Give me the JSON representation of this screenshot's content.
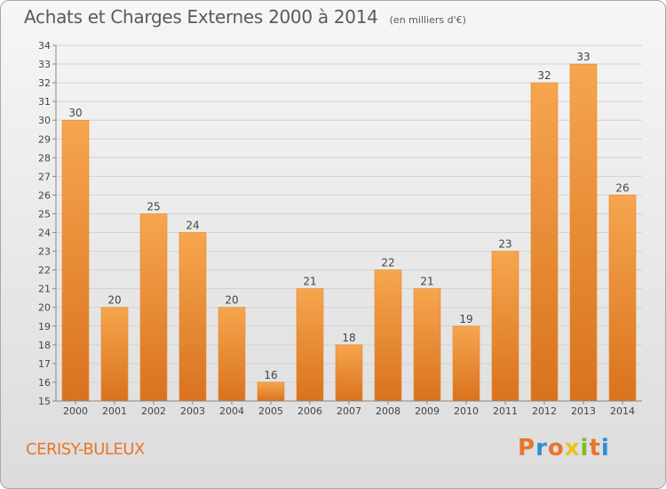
{
  "header": {
    "title": "Achats et Charges Externes 2000 à 2014",
    "subtitle": "(en milliers d'€)"
  },
  "footer": {
    "commune": "CERISY-BULEUX",
    "logo_text": "Proxiti",
    "logo_colors": [
      "#e8762a",
      "#2b8fd6",
      "#e8762a",
      "#e8c51a",
      "#7bbd2a",
      "#e8762a",
      "#2b8fd6"
    ]
  },
  "colors": {
    "bar_light": "#f6a64e",
    "bar_dark": "#d9721e",
    "bar_edge": "#e8862e"
  },
  "chart_data": {
    "type": "bar",
    "title": "Achats et Charges Externes 2000 à 2014",
    "subtitle": "(en milliers d'€)",
    "categories": [
      "2000",
      "2001",
      "2002",
      "2003",
      "2004",
      "2005",
      "2006",
      "2007",
      "2008",
      "2009",
      "2010",
      "2011",
      "2012",
      "2013",
      "2014"
    ],
    "values": [
      30,
      20,
      25,
      24,
      20,
      16,
      21,
      18,
      22,
      21,
      19,
      23,
      32,
      33,
      26
    ],
    "ylim": [
      15,
      34
    ],
    "yticks": [
      "15",
      "16",
      "17",
      "18",
      "19",
      "20",
      "21",
      "22",
      "23",
      "24",
      "25",
      "26",
      "27",
      "28",
      "29",
      "30",
      "31",
      "32",
      "33",
      "34"
    ],
    "grid": true,
    "xlabel": "",
    "ylabel": ""
  }
}
